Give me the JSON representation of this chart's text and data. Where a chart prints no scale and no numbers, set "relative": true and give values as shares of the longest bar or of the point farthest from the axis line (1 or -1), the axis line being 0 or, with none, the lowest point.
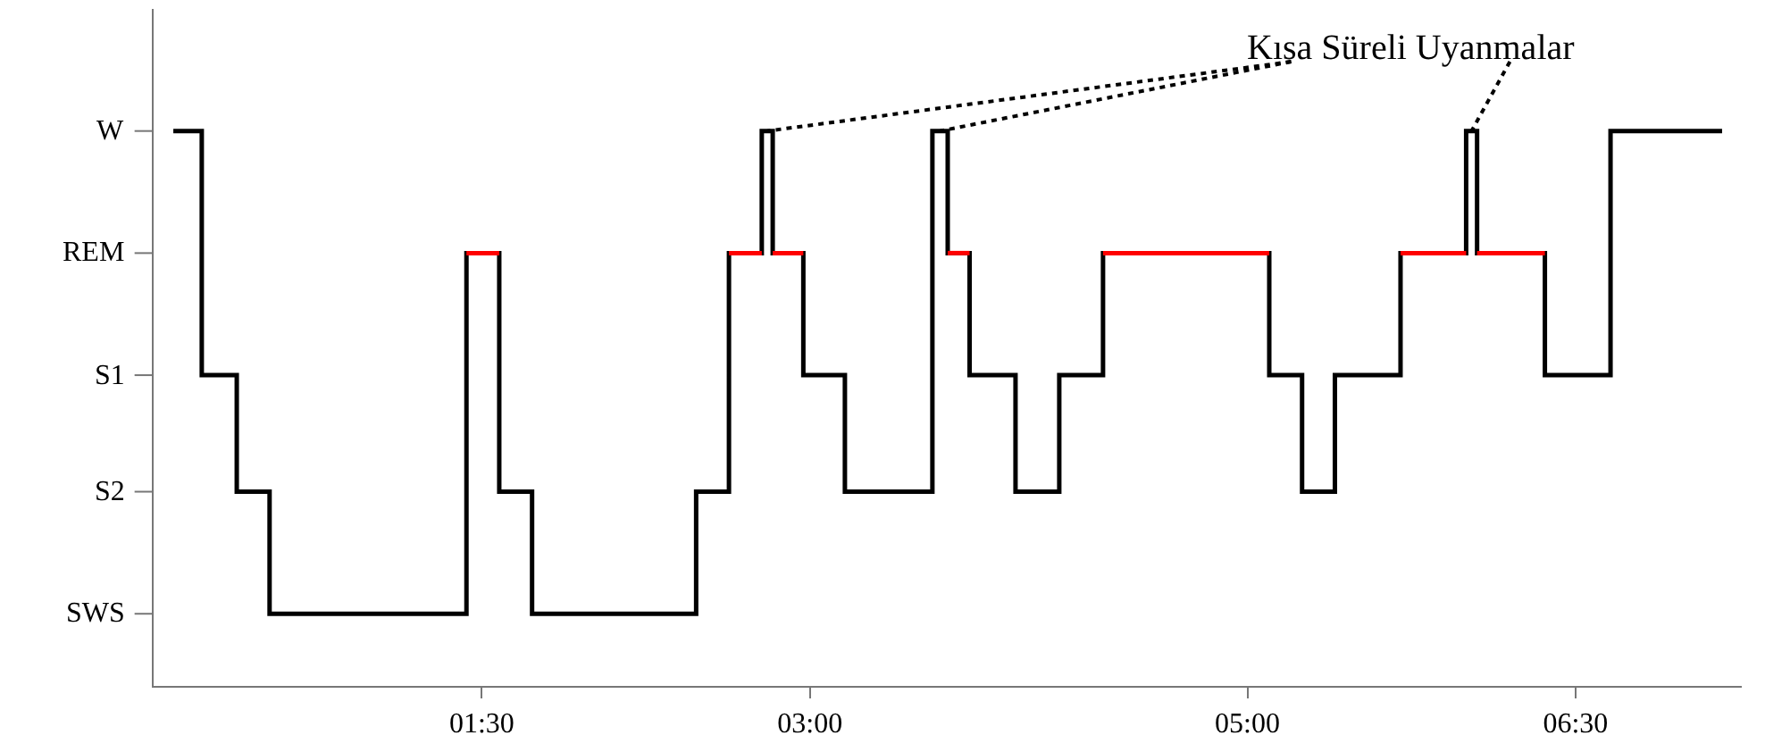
{
  "chart_data": {
    "type": "step",
    "relative": true,
    "x": [
      0.09,
      0.22,
      0.38,
      0.53,
      1.43,
      1.58,
      1.73,
      2.48,
      2.63,
      2.78,
      2.83,
      2.97,
      3.16,
      3.56,
      3.63,
      3.73,
      3.94,
      4.14,
      4.34,
      5.1,
      5.25,
      5.4,
      5.7,
      6.0,
      6.05,
      6.36,
      6.66,
      7.17
    ],
    "series": [
      {
        "color": "#000000",
        "values": [
          1,
          0.56,
          0.35,
          0.13,
          0.78,
          0.35,
          0.13,
          0.35,
          0.78,
          1,
          0.78,
          0.56,
          0.35,
          1,
          0.78,
          0.56,
          0.35,
          0.56,
          0.78,
          0.56,
          0.35,
          0.56,
          0.78,
          1,
          0.78,
          0.56,
          1,
          1
        ]
      },
      {
        "type": "line",
        "color": "#ff0000",
        "x": [
          1.43,
          1.58,
          null,
          2.63,
          2.78,
          null,
          2.83,
          2.97,
          null,
          3.63,
          3.73,
          null,
          4.34,
          5.1,
          null,
          5.7,
          6.0,
          null,
          6.05,
          6.36
        ],
        "values": [
          0.78,
          0.78,
          null,
          0.78,
          0.78,
          null,
          0.78,
          0.78,
          null,
          0.78,
          0.78,
          null,
          0.78,
          0.78,
          null,
          0.78,
          0.78,
          null,
          0.78,
          0.78
        ]
      }
    ],
    "xlim": [
      0.0,
      7.26
    ],
    "xticks": [
      {
        "value": 1.5,
        "label": "01:30"
      },
      {
        "value": 3.0,
        "label": "03:00"
      },
      {
        "value": 5.0,
        "label": "05:00"
      },
      {
        "value": 6.5,
        "label": "06:30"
      }
    ],
    "annotations": [
      "W",
      "REM",
      "S1",
      "S2",
      "SWS",
      {
        "text": "Kısa Süreli Uyanmalar",
        "x": 3.595,
        "y": 1
      }
    ],
    "legend": false,
    "line_style": "solid"
  }
}
